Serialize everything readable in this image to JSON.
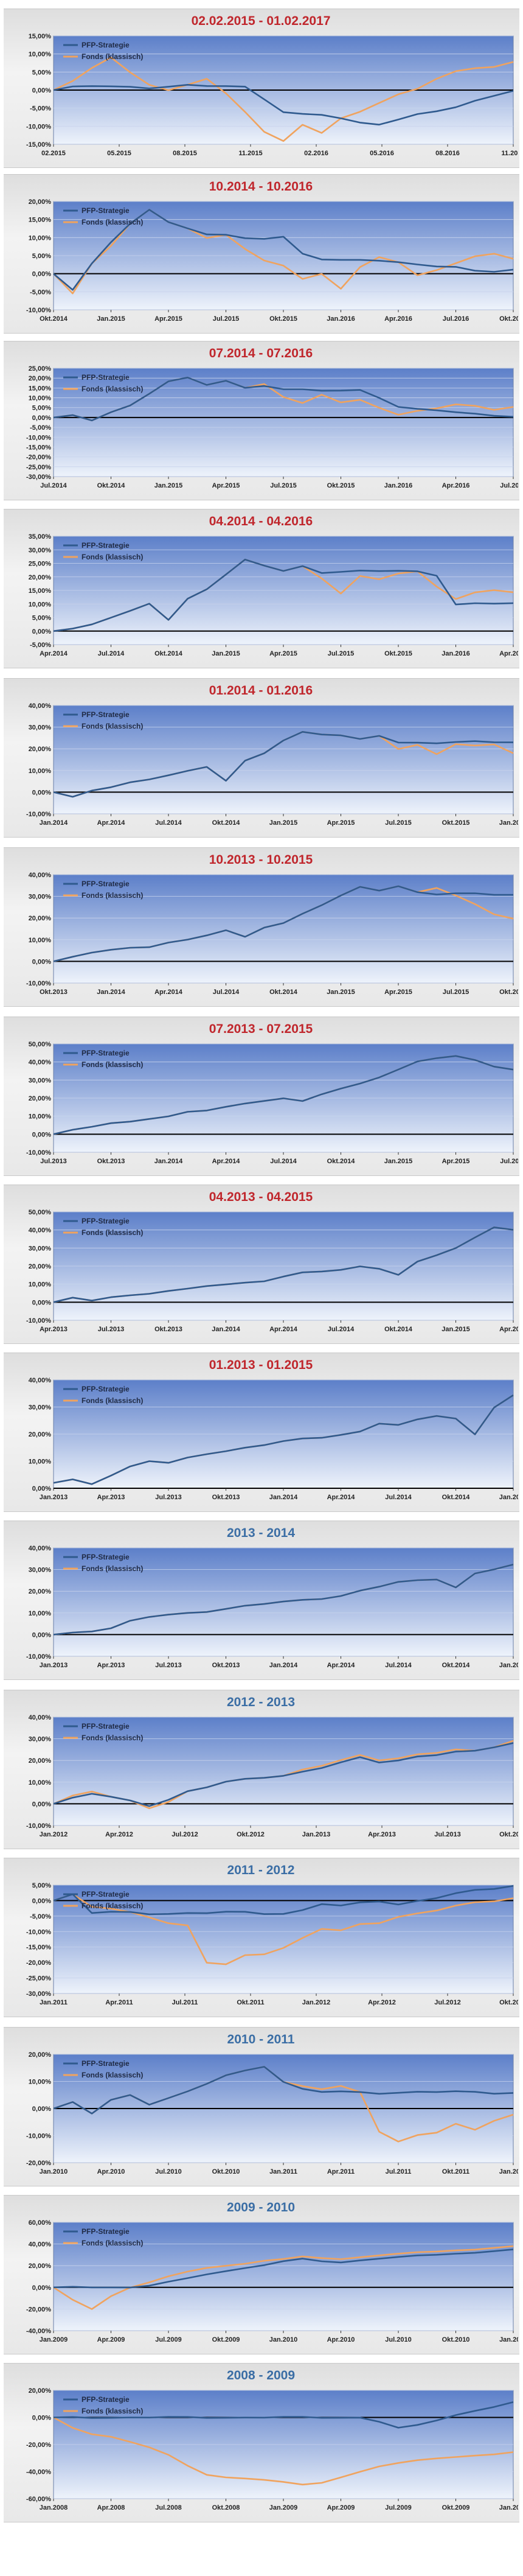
{
  "colors": {
    "strategy": "#2f5a8e",
    "fund": "#f0a35e",
    "title_red": "#c0262c",
    "title_blue": "#3b6ea5",
    "plot_top": "#5c7fc9",
    "plot_bottom": "#eef3fb"
  },
  "legend": {
    "strategy": "PFP-Strategie",
    "fund": "Fonds (klassisch)"
  },
  "chart_data": [
    {
      "type": "line",
      "title": "02.02.2015 - 01.02.2017",
      "title_color": "red",
      "yticks": [
        15,
        10,
        5,
        0,
        -5,
        -10,
        -15
      ],
      "ylim": [
        -15,
        15
      ],
      "y_decimals": 2,
      "xticks": [
        "02.2015",
        "05.2015",
        "08.2015",
        "11.2015",
        "02.2016",
        "05.2016",
        "08.2016",
        "11.2016"
      ],
      "fund": [
        0,
        2,
        6,
        9,
        5,
        2,
        0,
        1,
        3,
        -1,
        -6,
        -11,
        -14,
        -10,
        -12,
        -8,
        -6,
        -3,
        -1,
        0,
        3,
        5,
        6,
        7,
        8
      ],
      "strategy": [
        0,
        0.5,
        1,
        1,
        1,
        1,
        1,
        1,
        1,
        1,
        1,
        -2,
        -6,
        -7,
        -7,
        -8,
        -9,
        -9,
        -8,
        -7,
        -6,
        -5,
        -3,
        -1,
        0
      ],
      "series": [
        {
          "name": "PFP-Strategie"
        },
        {
          "name": "Fonds (klassisch)"
        }
      ]
    },
    {
      "type": "line",
      "title": "10.2014 - 10.2016",
      "title_color": "red",
      "yticks": [
        20,
        15,
        10,
        5,
        0,
        -5,
        -10
      ],
      "ylim": [
        -10,
        20
      ],
      "y_decimals": 2,
      "xticks": [
        "Okt.2014",
        "Jan.2015",
        "Apr.2015",
        "Jul.2015",
        "Okt.2015",
        "Jan.2016",
        "Apr.2016",
        "Jul.2016",
        "Okt.2016"
      ],
      "fund": [
        0,
        -6,
        3,
        8,
        14,
        18,
        14,
        12,
        10,
        11,
        7,
        4,
        2,
        -2,
        0,
        -4,
        2,
        5,
        3,
        -1,
        1,
        3,
        5,
        6,
        4
      ],
      "strategy": [
        0,
        -5,
        3,
        9,
        14,
        18,
        14,
        12,
        11,
        11,
        10,
        10,
        10,
        5,
        4,
        4,
        4,
        4,
        3,
        2,
        2,
        2,
        1,
        1,
        1
      ],
      "series": [
        {
          "name": "PFP-Strategie"
        },
        {
          "name": "Fonds (klassisch)"
        }
      ]
    },
    {
      "type": "line",
      "title": "07.2014 - 07.2016",
      "title_color": "red",
      "yticks": [
        25,
        20,
        15,
        10,
        5,
        0,
        -5,
        -10,
        -15,
        -20,
        -25,
        -30
      ],
      "ylim": [
        -30,
        25
      ],
      "y_decimals": 2,
      "xticks": [
        "Jul.2014",
        "Okt.2014",
        "Jan.2015",
        "Apr.2015",
        "Jul.2015",
        "Okt.2015",
        "Jan.2016",
        "Apr.2016",
        "Jul.2016"
      ],
      "fund": [
        0,
        1,
        -1,
        3,
        6,
        12,
        18,
        20,
        17,
        19,
        15,
        17,
        10,
        7,
        12,
        8,
        9,
        5,
        1,
        3,
        5,
        7,
        6,
        4,
        5
      ],
      "strategy": [
        0,
        1,
        -1,
        3,
        6,
        12,
        18,
        20,
        17,
        19,
        15,
        16,
        14,
        14,
        14,
        14,
        14,
        10,
        5,
        4,
        4,
        3,
        2,
        1,
        0
      ],
      "series": [
        {
          "name": "PFP-Strategie"
        },
        {
          "name": "Fonds (klassisch)"
        }
      ]
    },
    {
      "type": "line",
      "title": "04.2014 - 04.2016",
      "title_color": "red",
      "yticks": [
        35,
        30,
        25,
        20,
        15,
        10,
        5,
        0,
        -5
      ],
      "ylim": [
        -5,
        35
      ],
      "y_decimals": 2,
      "xticks": [
        "Apr.2014",
        "Jul.2014",
        "Okt.2014",
        "Jan.2015",
        "Apr.2015",
        "Jul.2015",
        "Okt.2015",
        "Jan.2016",
        "Apr.2016"
      ],
      "fund": [
        0,
        1,
        3,
        5,
        7,
        10,
        4,
        12,
        16,
        21,
        26,
        24,
        22,
        24,
        20,
        14,
        20,
        19,
        21,
        22,
        17,
        12,
        14,
        15,
        14
      ],
      "strategy": [
        0,
        1,
        3,
        5,
        7,
        10,
        4,
        12,
        16,
        21,
        26,
        24,
        22,
        24,
        22,
        22,
        22,
        22,
        22,
        22,
        21,
        10,
        10,
        10,
        10
      ],
      "series": [
        {
          "name": "PFP-Strategie"
        },
        {
          "name": "Fonds (klassisch)"
        }
      ]
    },
    {
      "type": "line",
      "title": "01.2014 - 01.2016",
      "title_color": "red",
      "yticks": [
        40,
        30,
        20,
        10,
        0,
        -10
      ],
      "ylim": [
        -10,
        40
      ],
      "y_decimals": 2,
      "xticks": [
        "Jan.2014",
        "Apr.2014",
        "Jul.2014",
        "Okt.2014",
        "Jan.2015",
        "Apr.2015",
        "Jul.2015",
        "Okt.2015",
        "Jan.2016"
      ],
      "fund": [
        0,
        -2,
        1,
        2,
        4,
        6,
        8,
        10,
        12,
        5,
        14,
        18,
        24,
        28,
        27,
        26,
        24,
        26,
        20,
        22,
        18,
        22,
        21,
        22,
        18
      ],
      "strategy": [
        0,
        -2,
        1,
        2,
        4,
        6,
        8,
        10,
        12,
        5,
        14,
        18,
        24,
        28,
        27,
        26,
        24,
        26,
        23,
        23,
        23,
        23,
        23,
        23,
        23
      ],
      "series": [
        {
          "name": "PFP-Strategie"
        },
        {
          "name": "Fonds (klassisch)"
        }
      ]
    },
    {
      "type": "line",
      "title": "10.2013 - 10.2015",
      "title_color": "red",
      "yticks": [
        40,
        30,
        20,
        10,
        0,
        -10
      ],
      "ylim": [
        -10,
        40
      ],
      "y_decimals": 2,
      "xticks": [
        "Okt.2013",
        "Jan.2014",
        "Apr.2014",
        "Jul.2014",
        "Okt.2014",
        "Jan.2015",
        "Apr.2015",
        "Jul.2015",
        "Okt.2015"
      ],
      "fund": [
        0,
        2,
        4,
        5,
        6,
        7,
        9,
        10,
        12,
        14,
        11,
        16,
        18,
        22,
        26,
        30,
        34,
        33,
        35,
        32,
        34,
        30,
        26,
        22,
        20
      ],
      "strategy": [
        0,
        2,
        4,
        5,
        6,
        7,
        9,
        10,
        12,
        14,
        11,
        16,
        18,
        22,
        26,
        30,
        34,
        33,
        35,
        32,
        31,
        31,
        31,
        31,
        31
      ],
      "series": [
        {
          "name": "PFP-Strategie"
        },
        {
          "name": "Fonds (klassisch)"
        }
      ]
    },
    {
      "type": "line",
      "title": "07.2013 - 07.2015",
      "title_color": "red",
      "yticks": [
        50,
        40,
        30,
        20,
        10,
        0,
        -10
      ],
      "ylim": [
        -10,
        50
      ],
      "y_decimals": 2,
      "xticks": [
        "Jul.2013",
        "Okt.2013",
        "Jan.2014",
        "Apr.2014",
        "Jul.2014",
        "Okt.2014",
        "Jan.2015",
        "Apr.2015",
        "Jul.2015"
      ],
      "fund": [
        0,
        2,
        4,
        6,
        7,
        9,
        10,
        12,
        13,
        15,
        17,
        19,
        20,
        18,
        22,
        25,
        28,
        32,
        36,
        40,
        42,
        43,
        41,
        38,
        36
      ],
      "strategy": [
        0,
        2,
        4,
        6,
        7,
        9,
        10,
        12,
        13,
        15,
        17,
        19,
        20,
        18,
        22,
        25,
        28,
        32,
        36,
        40,
        42,
        43,
        41,
        38,
        36
      ],
      "series": [
        {
          "name": "PFP-Strategie"
        },
        {
          "name": "Fonds (klassisch)"
        }
      ]
    },
    {
      "type": "line",
      "title": "04.2013 - 04.2015",
      "title_color": "red",
      "yticks": [
        50,
        40,
        30,
        20,
        10,
        0,
        -10
      ],
      "ylim": [
        -10,
        50
      ],
      "y_decimals": 2,
      "xticks": [
        "Apr.2013",
        "Jul.2013",
        "Okt.2013",
        "Jan.2014",
        "Apr.2014",
        "Jul.2014",
        "Okt.2014",
        "Jan.2015",
        "Apr.2015"
      ],
      "fund": [
        0,
        2,
        1,
        3,
        4,
        5,
        6,
        7,
        9,
        10,
        11,
        12,
        14,
        16,
        17,
        18,
        20,
        19,
        15,
        22,
        26,
        30,
        36,
        42,
        40
      ],
      "strategy": [
        0,
        2,
        1,
        3,
        4,
        5,
        6,
        7,
        9,
        10,
        11,
        12,
        14,
        16,
        17,
        18,
        20,
        19,
        15,
        22,
        26,
        30,
        36,
        42,
        40
      ],
      "series": [
        {
          "name": "PFP-Strategie"
        },
        {
          "name": "Fonds (klassisch)"
        }
      ]
    },
    {
      "type": "line",
      "title": "01.2013 - 01.2015",
      "title_color": "red",
      "yticks": [
        40,
        30,
        20,
        10,
        0
      ],
      "ylim": [
        0,
        40
      ],
      "y_decimals": 2,
      "xticks": [
        "Jan.2013",
        "Apr.2013",
        "Jul.2013",
        "Okt.2013",
        "Jan.2014",
        "Apr.2014",
        "Jul.2014",
        "Okt.2014",
        "Jan.2015"
      ],
      "fund": [
        2,
        3,
        2,
        5,
        8,
        10,
        9,
        11,
        13,
        14,
        15,
        16,
        17,
        18,
        19,
        20,
        21,
        24,
        23,
        25,
        27,
        26,
        20,
        30,
        34
      ],
      "strategy": [
        2,
        3,
        2,
        5,
        8,
        10,
        9,
        11,
        13,
        14,
        15,
        16,
        17,
        18,
        19,
        20,
        21,
        24,
        23,
        25,
        27,
        26,
        20,
        30,
        34
      ],
      "series": [
        {
          "name": "PFP-Strategie"
        },
        {
          "name": "Fonds (klassisch)"
        }
      ]
    },
    {
      "type": "line",
      "title": "2013 - 2014",
      "title_color": "blue",
      "yticks": [
        40,
        30,
        20,
        10,
        0,
        -10
      ],
      "ylim": [
        -10,
        40
      ],
      "y_decimals": 2,
      "xticks": [
        "Jan.2013",
        "Apr.2013",
        "Jul.2013",
        "Okt.2013",
        "Jan.2014",
        "Apr.2014",
        "Jul.2014",
        "Okt.2014",
        "Jan.2015"
      ],
      "fund": [
        0,
        1,
        2,
        3,
        6,
        8,
        9,
        10,
        11,
        12,
        13,
        14,
        15,
        16,
        17,
        18,
        20,
        22,
        24,
        25,
        26,
        22,
        28,
        30,
        32
      ],
      "strategy": [
        0,
        1,
        2,
        3,
        6,
        8,
        9,
        10,
        11,
        12,
        13,
        14,
        15,
        16,
        17,
        18,
        20,
        22,
        24,
        25,
        26,
        22,
        28,
        30,
        32
      ],
      "series": [
        {
          "name": "PFP-Strategie"
        },
        {
          "name": "Fonds (klassisch)"
        }
      ]
    },
    {
      "type": "line",
      "title": "2012 - 2013",
      "title_color": "blue",
      "yticks": [
        40,
        30,
        20,
        10,
        0,
        -10
      ],
      "ylim": [
        -10,
        40
      ],
      "y_decimals": 2,
      "xticks": [
        "Jan.2012",
        "Apr.2012",
        "Jul.2012",
        "Okt.2012",
        "Jan.2013",
        "Apr.2013",
        "Jul.2013",
        "Okt.2013"
      ],
      "fund": [
        0,
        4,
        6,
        3,
        1,
        -2,
        1,
        6,
        8,
        10,
        11,
        12,
        13,
        16,
        18,
        20,
        22,
        20,
        21,
        23,
        24,
        25,
        24,
        26,
        29
      ],
      "strategy": [
        0,
        3,
        5,
        3,
        1,
        -1,
        2,
        6,
        8,
        10,
        11,
        12,
        13,
        15,
        17,
        19,
        21,
        19,
        20,
        22,
        23,
        24,
        24,
        26,
        28
      ],
      "series": [
        {
          "name": "PFP-Strategie"
        },
        {
          "name": "Fonds (klassisch)"
        }
      ]
    },
    {
      "type": "line",
      "title": "2011 - 2012",
      "title_color": "blue",
      "yticks": [
        5,
        0,
        -5,
        -10,
        -15,
        -20,
        -25,
        -30
      ],
      "ylim": [
        -30,
        5
      ],
      "y_decimals": 2,
      "xticks": [
        "Jan.2011",
        "Apr.2011",
        "Jul.2011",
        "Okt.2011",
        "Jan.2012",
        "Apr.2012",
        "Jul.2012",
        "Okt.2012"
      ],
      "fund": [
        0,
        2,
        -2,
        -3,
        -4,
        -5,
        -7,
        -8,
        -20,
        -21,
        -18,
        -17,
        -15,
        -12,
        -9,
        -10,
        -8,
        -7,
        -5,
        -4,
        -3,
        -2,
        -1,
        0,
        1
      ],
      "strategy": [
        0,
        2,
        -4,
        -4,
        -4,
        -4,
        -4,
        -4,
        -4,
        -4,
        -4,
        -4,
        -4,
        -3,
        -1,
        -2,
        -1,
        0,
        -1,
        0,
        1,
        2,
        3,
        4,
        5
      ],
      "series": [
        {
          "name": "PFP-Strategie"
        },
        {
          "name": "Fonds (klassisch)"
        }
      ]
    },
    {
      "type": "line",
      "title": "2010 - 2011",
      "title_color": "blue",
      "yticks": [
        20,
        10,
        0,
        -10,
        -20
      ],
      "ylim": [
        -20,
        20
      ],
      "y_decimals": 2,
      "xticks": [
        "Jan.2010",
        "Apr.2010",
        "Jul.2010",
        "Okt.2010",
        "Jan.2011",
        "Apr.2011",
        "Jul.2011",
        "Okt.2011",
        "Jan.2012"
      ],
      "fund": [
        0,
        2,
        -2,
        3,
        5,
        2,
        4,
        6,
        9,
        12,
        14,
        16,
        10,
        8,
        7,
        8,
        6,
        -8,
        -12,
        -10,
        -9,
        -6,
        -8,
        -4,
        -2
      ],
      "strategy": [
        0,
        2,
        -2,
        3,
        5,
        2,
        4,
        6,
        9,
        12,
        14,
        16,
        10,
        7,
        6,
        6,
        6,
        6,
        6,
        6,
        6,
        6,
        6,
        6,
        6
      ],
      "series": [
        {
          "name": "PFP-Strategie"
        },
        {
          "name": "Fonds (klassisch)"
        }
      ]
    },
    {
      "type": "line",
      "title": "2009 - 2010",
      "title_color": "blue",
      "yticks": [
        60,
        40,
        20,
        0,
        -20,
        -40
      ],
      "ylim": [
        -40,
        60
      ],
      "y_decimals": 2,
      "xticks": [
        "Jan.2009",
        "Apr.2009",
        "Jul.2009",
        "Okt.2009",
        "Jan.2010",
        "Apr.2010",
        "Jul.2010",
        "Okt.2010",
        "Jan.2011"
      ],
      "fund": [
        0,
        -12,
        -20,
        -8,
        0,
        5,
        10,
        14,
        18,
        20,
        22,
        25,
        26,
        28,
        27,
        26,
        28,
        30,
        31,
        32,
        33,
        34,
        35,
        37,
        38
      ],
      "strategy": [
        0,
        0,
        0,
        0,
        0,
        2,
        5,
        8,
        12,
        15,
        18,
        21,
        24,
        26,
        24,
        23,
        25,
        27,
        28,
        29,
        30,
        31,
        32,
        34,
        35
      ],
      "series": [
        {
          "name": "PFP-Strategie"
        },
        {
          "name": "Fonds (klassisch)"
        }
      ]
    },
    {
      "type": "line",
      "title": "2008 - 2009",
      "title_color": "blue",
      "yticks": [
        20,
        0,
        -20,
        -40,
        -60
      ],
      "ylim": [
        -60,
        20
      ],
      "y_decimals": 2,
      "xticks": [
        "Jan.2008",
        "Apr.2008",
        "Jul.2008",
        "Okt.2008",
        "Jan.2009",
        "Apr.2009",
        "Jul.2009",
        "Okt.2009",
        "Jan.2010"
      ],
      "fund": [
        0,
        -8,
        -12,
        -14,
        -18,
        -22,
        -28,
        -36,
        -42,
        -44,
        -45,
        -46,
        -48,
        -50,
        -48,
        -44,
        -40,
        -36,
        -34,
        -32,
        -30,
        -29,
        -28,
        -27,
        -26
      ],
      "strategy": [
        0,
        0,
        0,
        0,
        0,
        0,
        0,
        0,
        0,
        0,
        0,
        0,
        0,
        0,
        0,
        0,
        0,
        -3,
        -8,
        -6,
        -2,
        2,
        5,
        8,
        11
      ],
      "series": [
        {
          "name": "PFP-Strategie"
        },
        {
          "name": "Fonds (klassisch)"
        }
      ]
    }
  ]
}
